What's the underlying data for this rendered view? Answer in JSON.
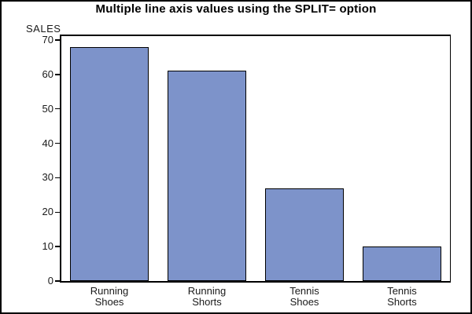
{
  "window": {
    "background": "#ffffff",
    "border_color": "#000000"
  },
  "chart_data": {
    "type": "bar",
    "title": "Multiple line axis values using the SPLIT= option",
    "ylabel": "SALES",
    "xlabel": "",
    "categories": [
      [
        "Running",
        "Shoes"
      ],
      [
        "Running",
        "Shorts"
      ],
      [
        "Tennis",
        "Shoes"
      ],
      [
        "Tennis",
        "Shorts"
      ]
    ],
    "values": [
      68,
      61,
      27,
      10
    ],
    "ylim": [
      0,
      70
    ],
    "yticks": [
      0,
      10,
      20,
      30,
      40,
      50,
      60,
      70
    ],
    "grid": false,
    "legend_position": "none",
    "frame": true,
    "bar_fill": "#7d93ca",
    "bar_outline": "#000000",
    "text_color": "#1a1a1a",
    "title_color": "#000000"
  }
}
